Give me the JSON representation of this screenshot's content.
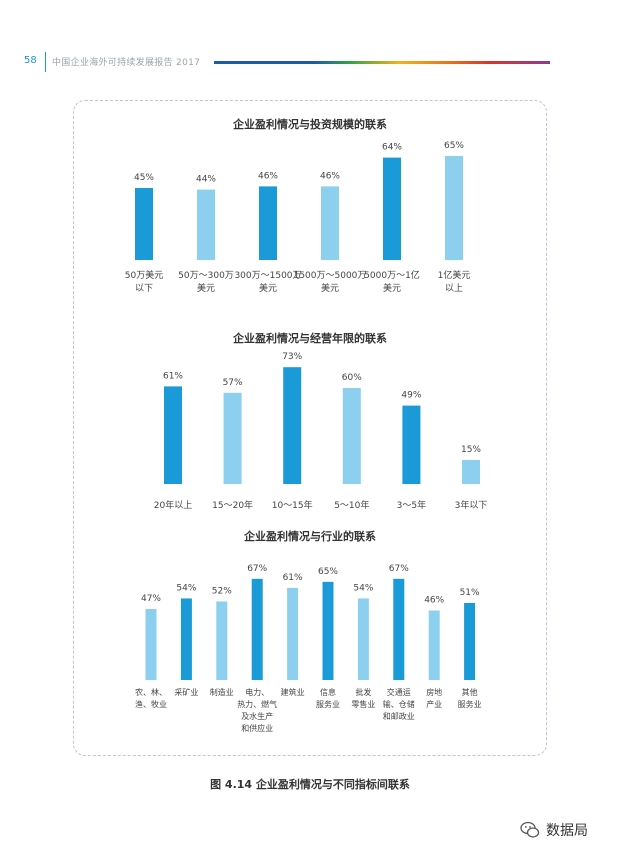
{
  "header": {
    "page_number": "58",
    "title": "中国企业海外可持续发展报告 2017"
  },
  "colors": {
    "dark": "#1a9ad6",
    "light": "#8ccfef"
  },
  "chart_data": [
    {
      "type": "bar",
      "title": "企业盈利情况与投资规模的联系",
      "categories": [
        "50万美元\n以下",
        "50万～300万\n美元",
        "300万～1500万\n美元",
        "1500万～5000万\n美元",
        "5000万～1亿\n美元",
        "1亿美元\n以上"
      ],
      "values": [
        45,
        44,
        46,
        46,
        64,
        65
      ],
      "value_labels": [
        "45%",
        "44%",
        "46%",
        "46%",
        "64%",
        "65%"
      ],
      "bar_colors": [
        "dark",
        "light",
        "dark",
        "light",
        "dark",
        "light"
      ],
      "ylim": [
        0,
        100
      ]
    },
    {
      "type": "bar",
      "title": "企业盈利情况与经营年限的联系",
      "categories": [
        "20年以上",
        "15～20年",
        "10～15年",
        "5～10年",
        "3～5年",
        "3年以下"
      ],
      "values": [
        61,
        57,
        73,
        60,
        49,
        15
      ],
      "value_labels": [
        "61%",
        "57%",
        "73%",
        "60%",
        "49%",
        "15%"
      ],
      "bar_colors": [
        "dark",
        "light",
        "dark",
        "light",
        "dark",
        "light"
      ],
      "ylim": [
        0,
        100
      ]
    },
    {
      "type": "bar",
      "title": "企业盈利情况与行业的联系",
      "categories": [
        "农、林、\n渔、牧业",
        "采矿业",
        "制造业",
        "电力、\n热力、燃气\n及水生产\n和供应业",
        "建筑业",
        "信息\n服务业",
        "批发\n零售业",
        "交通运\n输、仓储\n和邮政业",
        "房地\n产业",
        "其他\n服务业"
      ],
      "values": [
        47,
        54,
        52,
        67,
        61,
        65,
        54,
        67,
        46,
        51
      ],
      "value_labels": [
        "47%",
        "54%",
        "52%",
        "67%",
        "61%",
        "65%",
        "54%",
        "67%",
        "46%",
        "51%"
      ],
      "bar_colors": [
        "light",
        "dark",
        "light",
        "dark",
        "light",
        "dark",
        "light",
        "dark",
        "light",
        "dark"
      ],
      "ylim": [
        0,
        100
      ]
    }
  ],
  "caption": "图 4.14  企业盈利情况与不同指标间联系",
  "watermark": {
    "icon": "wechat-icon",
    "text": "数据局"
  }
}
